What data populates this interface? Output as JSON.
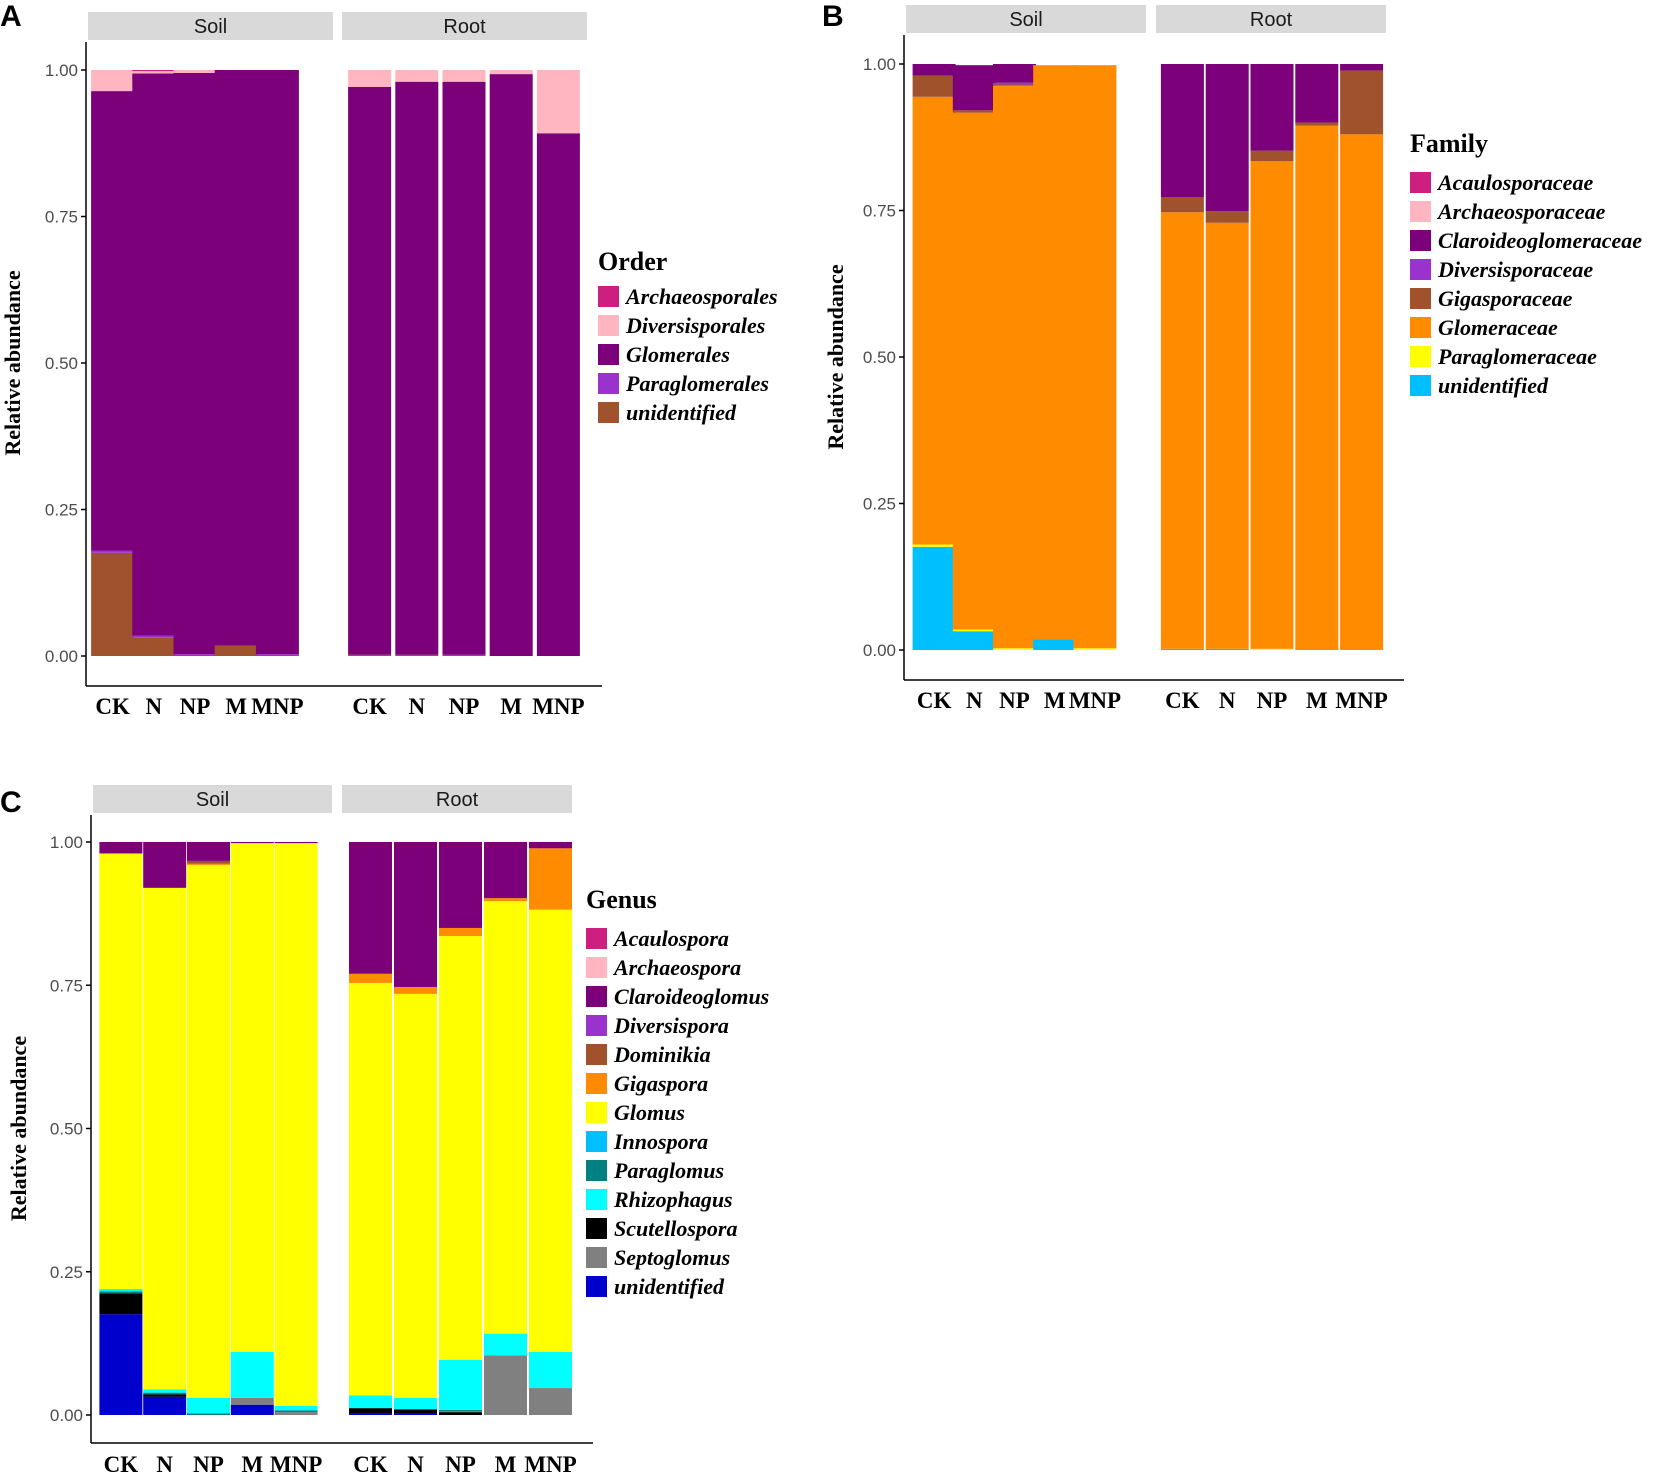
{
  "colors": {
    "Archaeosporales": "#cc1f7f",
    "Diversisporales": "#ffb6c1",
    "Glomerales": "#7b0079",
    "Paraglomerales": "#9a32cd",
    "unidentified_order": "#a0522d",
    "Acaulosporaceae": "#cc1f7f",
    "Archaeosporaceae": "#ffb6c1",
    "Claroideoglomeraceae": "#7b0079",
    "Diversisporaceae": "#9a32cd",
    "Gigasporaceae": "#a0522d",
    "Glomeraceae": "#ff8c00",
    "Paraglomeraceae": "#ffff00",
    "unidentified_family": "#00bfff",
    "Acaulospora": "#cc1f7f",
    "Archaeospora": "#ffb6c1",
    "Claroideoglomus": "#7b0079",
    "Diversispora": "#9a32cd",
    "Dominikia": "#a0522d",
    "Gigaspora": "#ff8c00",
    "Glomus": "#ffff00",
    "Innospora": "#00bfff",
    "Paraglomus": "#008080",
    "Rhizophagus": "#00ffff",
    "Scutellospora": "#000000",
    "Septoglomus": "#808080",
    "unidentified_genus": "#0000cd"
  },
  "chart_data": [
    {
      "panel": "A",
      "type": "bar",
      "stacked": true,
      "ylabel": "Relative abundance",
      "xlabel": "",
      "ylim": [
        0,
        1
      ],
      "yticks": [
        "0.00",
        "0.25",
        "0.50",
        "0.75",
        "1.00"
      ],
      "facets": [
        "Soil",
        "Root"
      ],
      "categories": [
        "CK",
        "N",
        "NP",
        "M",
        "MNP"
      ],
      "legend_title": "Order",
      "legend": [
        {
          "label": "Archaeosporales",
          "color_key": "Archaeosporales"
        },
        {
          "label": "Diversisporales",
          "color_key": "Diversisporales"
        },
        {
          "label": "Glomerales",
          "color_key": "Glomerales"
        },
        {
          "label": "Paraglomerales",
          "color_key": "Paraglomerales"
        },
        {
          "label": "unidentified",
          "color_key": "unidentified_order"
        }
      ],
      "series": [
        {
          "name": "unidentified",
          "color_key": "unidentified_order",
          "values": {
            "Soil": [
              0.176,
              0.032,
              0.0,
              0.018,
              0.0
            ],
            "Root": [
              0.002,
              0.002,
              0.0,
              0.0,
              0.0
            ]
          }
        },
        {
          "name": "Paraglomerales",
          "color_key": "Paraglomerales",
          "values": {
            "Soil": [
              0.004,
              0.003,
              0.003,
              0.0,
              0.003
            ],
            "Root": [
              0.0,
              0.0,
              0.002,
              0.0,
              0.0
            ]
          }
        },
        {
          "name": "Glomerales",
          "color_key": "Glomerales",
          "values": {
            "Soil": [
              0.784,
              0.959,
              0.992,
              0.982,
              0.997
            ],
            "Root": [
              0.969,
              0.978,
              0.978,
              0.993,
              0.892
            ]
          }
        },
        {
          "name": "Diversisporales",
          "color_key": "Diversisporales",
          "values": {
            "Soil": [
              0.036,
              0.004,
              0.005,
              0.0,
              0.0
            ],
            "Root": [
              0.029,
              0.02,
              0.02,
              0.007,
              0.108
            ]
          }
        },
        {
          "name": "Archaeosporales",
          "color_key": "Archaeosporales",
          "values": {
            "Soil": [
              0.0,
              0.002,
              0.0,
              0.0,
              0.0
            ],
            "Root": [
              0.0,
              0.0,
              0.0,
              0.0,
              0.0
            ]
          }
        }
      ]
    },
    {
      "panel": "B",
      "type": "bar",
      "stacked": true,
      "ylabel": "Relative abundance",
      "xlabel": "",
      "ylim": [
        0,
        1
      ],
      "yticks": [
        "0.00",
        "0.25",
        "0.50",
        "0.75",
        "1.00"
      ],
      "facets": [
        "Soil",
        "Root"
      ],
      "categories": [
        "CK",
        "N",
        "NP",
        "M",
        "MNP"
      ],
      "legend_title": "Family",
      "legend": [
        {
          "label": "Acaulosporaceae",
          "color_key": "Acaulosporaceae"
        },
        {
          "label": "Archaeosporaceae",
          "color_key": "Archaeosporaceae"
        },
        {
          "label": "Claroideoglomeraceae",
          "color_key": "Claroideoglomeraceae"
        },
        {
          "label": "Diversisporaceae",
          "color_key": "Diversisporaceae"
        },
        {
          "label": "Gigasporaceae",
          "color_key": "Gigasporaceae"
        },
        {
          "label": "Glomeraceae",
          "color_key": "Glomeraceae"
        },
        {
          "label": "Paraglomeraceae",
          "color_key": "Paraglomeraceae"
        },
        {
          "label": "unidentified",
          "color_key": "unidentified_family"
        }
      ],
      "series": [
        {
          "name": "unidentified",
          "color_key": "unidentified_family",
          "values": {
            "Soil": [
              0.176,
              0.032,
              0.0,
              0.018,
              0.0
            ],
            "Root": [
              0.002,
              0.002,
              0.0,
              0.0,
              0.0
            ]
          }
        },
        {
          "name": "Paraglomeraceae",
          "color_key": "Paraglomeraceae",
          "values": {
            "Soil": [
              0.004,
              0.003,
              0.003,
              0.0,
              0.003
            ],
            "Root": [
              0.0,
              0.0,
              0.002,
              0.0,
              0.0
            ]
          }
        },
        {
          "name": "Glomeraceae",
          "color_key": "Glomeraceae",
          "values": {
            "Soil": [
              0.764,
              0.882,
              0.96,
              0.98,
              0.995
            ],
            "Root": [
              0.745,
              0.727,
              0.832,
              0.895,
              0.88
            ]
          }
        },
        {
          "name": "Gigasporaceae",
          "color_key": "Gigasporaceae",
          "values": {
            "Soil": [
              0.036,
              0.004,
              0.002,
              0.0,
              0.0
            ],
            "Root": [
              0.026,
              0.02,
              0.018,
              0.005,
              0.109
            ]
          }
        },
        {
          "name": "Diversisporaceae",
          "color_key": "Diversisporaceae",
          "values": {
            "Soil": [
              0.0,
              0.0,
              0.003,
              0.0,
              0.0
            ],
            "Root": [
              0.0,
              0.0,
              0.0,
              0.0,
              0.0
            ]
          }
        },
        {
          "name": "Claroideoglomeraceae",
          "color_key": "Claroideoglomeraceae",
          "values": {
            "Soil": [
              0.02,
              0.077,
              0.032,
              0.0,
              0.0
            ],
            "Root": [
              0.227,
              0.251,
              0.148,
              0.1,
              0.011
            ]
          }
        },
        {
          "name": "Archaeosporaceae",
          "color_key": "Archaeosporaceae",
          "values": {
            "Soil": [
              0.0,
              0.0,
              0.0,
              0.0,
              0.0
            ],
            "Root": [
              0.0,
              0.0,
              0.0,
              0.0,
              0.0
            ]
          }
        },
        {
          "name": "Acaulosporaceae",
          "color_key": "Acaulosporaceae",
          "values": {
            "Soil": [
              0.0,
              0.0,
              0.0,
              0.0,
              0.0
            ],
            "Root": [
              0.0,
              0.0,
              0.0,
              0.0,
              0.0
            ]
          }
        }
      ]
    },
    {
      "panel": "C",
      "type": "bar",
      "stacked": true,
      "ylabel": "Relative abundance",
      "xlabel": "",
      "ylim": [
        0,
        1
      ],
      "yticks": [
        "0.00",
        "0.25",
        "0.50",
        "0.75",
        "1.00"
      ],
      "facets": [
        "Soil",
        "Root"
      ],
      "categories": [
        "CK",
        "N",
        "NP",
        "M",
        "MNP"
      ],
      "legend_title": "Genus",
      "legend": [
        {
          "label": "Acaulospora",
          "color_key": "Acaulospora"
        },
        {
          "label": "Archaeospora",
          "color_key": "Archaeospora"
        },
        {
          "label": "Claroideoglomus",
          "color_key": "Claroideoglomus"
        },
        {
          "label": "Diversispora",
          "color_key": "Diversispora"
        },
        {
          "label": "Dominikia",
          "color_key": "Dominikia"
        },
        {
          "label": "Gigaspora",
          "color_key": "Gigaspora"
        },
        {
          "label": "Glomus",
          "color_key": "Glomus"
        },
        {
          "label": "Innospora",
          "color_key": "Innospora"
        },
        {
          "label": "Paraglomus",
          "color_key": "Paraglomus"
        },
        {
          "label": "Rhizophagus",
          "color_key": "Rhizophagus"
        },
        {
          "label": "Scutellospora",
          "color_key": "Scutellospora"
        },
        {
          "label": "Septoglomus",
          "color_key": "Septoglomus"
        },
        {
          "label": "unidentified",
          "color_key": "unidentified_genus"
        }
      ],
      "series": [
        {
          "name": "unidentified",
          "color_key": "unidentified_genus",
          "values": {
            "Soil": [
              0.176,
              0.032,
              0.0,
              0.018,
              0.0
            ],
            "Root": [
              0.002,
              0.002,
              0.0,
              0.0,
              0.0
            ]
          }
        },
        {
          "name": "Scutellospora",
          "color_key": "Scutellospora",
          "values": {
            "Soil": [
              0.036,
              0.004,
              0.0,
              0.0,
              0.0
            ],
            "Root": [
              0.01,
              0.008,
              0.005,
              0.0,
              0.0
            ]
          }
        },
        {
          "name": "Septoglomus",
          "color_key": "Septoglomus",
          "values": {
            "Soil": [
              0.0,
              0.0,
              0.0,
              0.012,
              0.005
            ],
            "Root": [
              0.0,
              0.0,
              0.002,
              0.104,
              0.047
            ]
          }
        },
        {
          "name": "Paraglomus",
          "color_key": "Paraglomus",
          "values": {
            "Soil": [
              0.004,
              0.003,
              0.003,
              0.0,
              0.003
            ],
            "Root": [
              0.0,
              0.0,
              0.002,
              0.0,
              0.0
            ]
          }
        },
        {
          "name": "Rhizophagus",
          "color_key": "Rhizophagus",
          "values": {
            "Soil": [
              0.004,
              0.006,
              0.027,
              0.08,
              0.008
            ],
            "Root": [
              0.022,
              0.02,
              0.087,
              0.038,
              0.063
            ]
          }
        },
        {
          "name": "Glomus",
          "color_key": "Glomus",
          "values": {
            "Soil": [
              0.76,
              0.875,
              0.93,
              0.888,
              0.982
            ],
            "Root": [
              0.72,
              0.705,
              0.74,
              0.755,
              0.772
            ]
          }
        },
        {
          "name": "Gigaspora",
          "color_key": "Gigaspora",
          "values": {
            "Soil": [
              0.0,
              0.0,
              0.002,
              0.0,
              0.0
            ],
            "Root": [
              0.016,
              0.012,
              0.014,
              0.005,
              0.107
            ]
          }
        },
        {
          "name": "Dominikia",
          "color_key": "Dominikia",
          "values": {
            "Soil": [
              0.0,
              0.0,
              0.005,
              0.0,
              0.0
            ],
            "Root": [
              0.0,
              0.0,
              0.0,
              0.0,
              0.0
            ]
          }
        },
        {
          "name": "Claroideoglomus",
          "color_key": "Claroideoglomus",
          "values": {
            "Soil": [
              0.02,
              0.08,
              0.033,
              0.002,
              0.002
            ],
            "Root": [
              0.23,
              0.253,
              0.15,
              0.098,
              0.011
            ]
          }
        },
        {
          "name": "Diversispora",
          "color_key": "Diversispora",
          "values": {
            "Soil": [
              0.0,
              0.0,
              0.0,
              0.0,
              0.0
            ],
            "Root": [
              0.0,
              0.0,
              0.0,
              0.0,
              0.0
            ]
          }
        },
        {
          "name": "Innospora",
          "color_key": "Innospora",
          "values": {
            "Soil": [
              0.0,
              0.0,
              0.0,
              0.0,
              0.0
            ],
            "Root": [
              0.0,
              0.0,
              0.0,
              0.0,
              0.0
            ]
          }
        },
        {
          "name": "Archaeospora",
          "color_key": "Archaeospora",
          "values": {
            "Soil": [
              0.0,
              0.0,
              0.0,
              0.0,
              0.0
            ],
            "Root": [
              0.0,
              0.0,
              0.0,
              0.0,
              0.0
            ]
          }
        },
        {
          "name": "Acaulospora",
          "color_key": "Acaulospora",
          "values": {
            "Soil": [
              0.0,
              0.0,
              0.0,
              0.0,
              0.0
            ],
            "Root": [
              0.0,
              0.0,
              0.0,
              0.0,
              0.0
            ]
          }
        }
      ]
    }
  ]
}
